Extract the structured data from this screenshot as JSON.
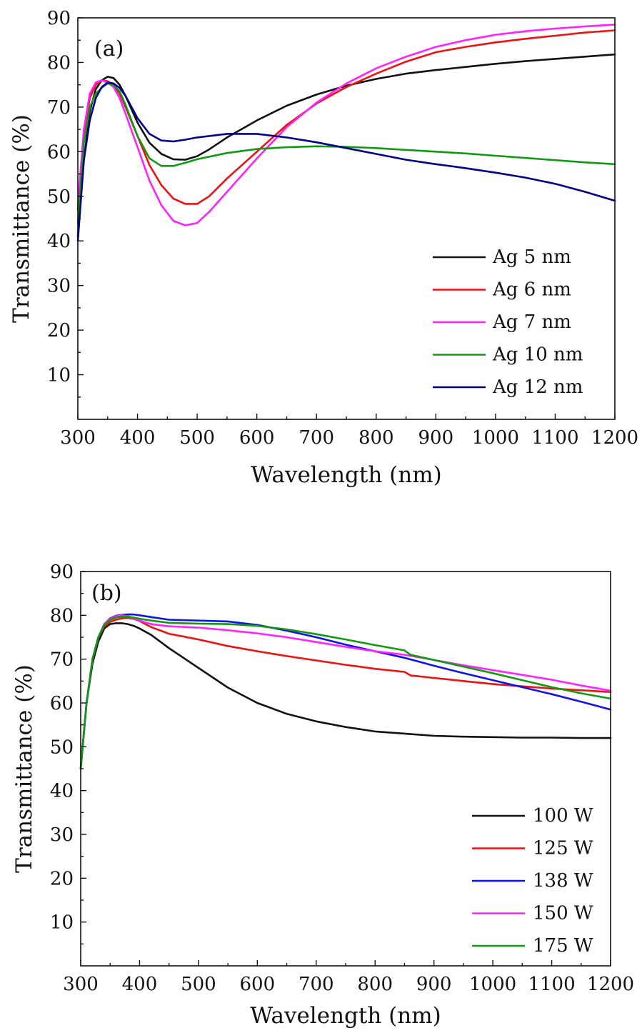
{
  "chart_data": [
    {
      "type": "line",
      "panel_label": "(a)",
      "xlabel": "Wavelength (nm)",
      "ylabel": "Transmittance (%)",
      "xlim": [
        300,
        1200
      ],
      "ylim": [
        0,
        90
      ],
      "xticks": [
        300,
        400,
        500,
        600,
        700,
        800,
        900,
        1000,
        1100,
        1200
      ],
      "yticks": [
        10,
        20,
        30,
        40,
        50,
        60,
        70,
        80,
        90
      ],
      "grid": false,
      "legend_position": "bottom-right",
      "series": [
        {
          "name": "Ag 5 nm",
          "color": "#111111",
          "x": [
            300,
            310,
            320,
            330,
            340,
            350,
            360,
            370,
            380,
            400,
            420,
            440,
            460,
            480,
            500,
            520,
            550,
            600,
            650,
            700,
            750,
            800,
            850,
            900,
            950,
            1000,
            1050,
            1100,
            1150,
            1200
          ],
          "y": [
            41,
            58,
            69,
            74,
            76,
            76.8,
            76.5,
            75,
            72.5,
            66.5,
            62,
            59.5,
            58.3,
            58.2,
            59,
            60.5,
            63.2,
            67,
            70.3,
            72.8,
            74.8,
            76.3,
            77.5,
            78.3,
            79,
            79.7,
            80.3,
            80.8,
            81.3,
            81.8
          ]
        },
        {
          "name": "Ag 6 nm",
          "color": "#ee1111",
          "x": [
            300,
            310,
            320,
            330,
            340,
            350,
            360,
            370,
            380,
            400,
            420,
            440,
            460,
            480,
            500,
            520,
            550,
            600,
            650,
            700,
            750,
            800,
            850,
            900,
            950,
            1000,
            1050,
            1100,
            1150,
            1200
          ],
          "y": [
            47,
            64,
            72,
            75,
            76,
            75.8,
            75,
            73,
            70,
            63.5,
            57,
            52.5,
            49.5,
            48.3,
            48.3,
            50,
            54,
            60,
            66,
            70.8,
            74.5,
            77.5,
            80.2,
            82.3,
            83.5,
            84.5,
            85.3,
            86,
            86.7,
            87.2
          ]
        },
        {
          "name": "Ag 7 nm",
          "color": "#ff22ff",
          "x": [
            300,
            310,
            320,
            330,
            340,
            350,
            360,
            370,
            380,
            400,
            420,
            440,
            460,
            480,
            500,
            520,
            550,
            600,
            650,
            700,
            750,
            800,
            850,
            900,
            950,
            1000,
            1050,
            1100,
            1150,
            1200
          ],
          "y": [
            48,
            65,
            73,
            75.5,
            76,
            75.5,
            74.5,
            72,
            68.5,
            61,
            53.5,
            48,
            44.5,
            43.5,
            44,
            46.5,
            51,
            58.5,
            65.5,
            71,
            75.3,
            78.7,
            81.3,
            83.5,
            85,
            86.2,
            87,
            87.6,
            88.1,
            88.5
          ]
        },
        {
          "name": "Ag 10 nm",
          "color": "#119911",
          "x": [
            300,
            310,
            320,
            330,
            340,
            350,
            360,
            370,
            380,
            400,
            420,
            440,
            460,
            480,
            500,
            550,
            600,
            650,
            700,
            750,
            800,
            850,
            900,
            950,
            1000,
            1050,
            1100,
            1150,
            1200
          ],
          "y": [
            44,
            62,
            70,
            73,
            74.3,
            75.3,
            75,
            73.5,
            70.5,
            63.5,
            58.5,
            56.8,
            56.8,
            57.5,
            58.3,
            59.7,
            60.6,
            61,
            61.2,
            61.1,
            60.8,
            60.4,
            60,
            59.6,
            59.1,
            58.6,
            58.1,
            57.6,
            57.2
          ]
        },
        {
          "name": "Ag 12 nm",
          "color": "#000088",
          "x": [
            300,
            310,
            320,
            330,
            340,
            350,
            360,
            370,
            380,
            400,
            420,
            440,
            460,
            480,
            500,
            550,
            600,
            650,
            700,
            750,
            800,
            850,
            900,
            950,
            1000,
            1050,
            1100,
            1150,
            1200
          ],
          "y": [
            40,
            58,
            67,
            72,
            74.5,
            75.5,
            75.3,
            74.3,
            72.5,
            67.5,
            64,
            62.5,
            62.3,
            62.7,
            63.2,
            64,
            64,
            63.2,
            62.1,
            60.8,
            59.5,
            58.2,
            57.2,
            56.3,
            55.3,
            54.2,
            52.8,
            51,
            49
          ]
        }
      ]
    },
    {
      "type": "line",
      "panel_label": "(b)",
      "xlabel": "Wavelength (nm)",
      "ylabel": "Transmittance (%)",
      "xlim": [
        300,
        1200
      ],
      "ylim": [
        0,
        90
      ],
      "xticks": [
        300,
        400,
        500,
        600,
        700,
        800,
        900,
        1000,
        1100,
        1200
      ],
      "yticks": [
        10,
        20,
        30,
        40,
        50,
        60,
        70,
        80,
        90
      ],
      "grid": false,
      "legend_position": "bottom-right",
      "series": [
        {
          "name": "100 W",
          "color": "#111111",
          "x": [
            300,
            310,
            320,
            330,
            340,
            350,
            360,
            370,
            380,
            390,
            400,
            420,
            450,
            500,
            550,
            600,
            650,
            700,
            750,
            800,
            850,
            900,
            950,
            1000,
            1050,
            1100,
            1150,
            1200
          ],
          "y": [
            45,
            60,
            69,
            74,
            77,
            78,
            78.2,
            78.2,
            78,
            77.6,
            77,
            75.5,
            72.5,
            68,
            63.5,
            60,
            57.5,
            55.8,
            54.5,
            53.5,
            53,
            52.5,
            52.3,
            52.2,
            52.1,
            52.1,
            52,
            52
          ]
        },
        {
          "name": "125 W",
          "color": "#ee1111",
          "x": [
            300,
            310,
            320,
            330,
            340,
            350,
            360,
            370,
            380,
            390,
            400,
            420,
            450,
            500,
            550,
            600,
            650,
            700,
            750,
            800,
            850,
            860,
            900,
            950,
            1000,
            1050,
            1100,
            1150,
            1200
          ],
          "y": [
            45,
            60,
            70,
            75,
            77.5,
            78.5,
            79,
            79.3,
            79.4,
            79.2,
            78.7,
            77.3,
            75.8,
            74.5,
            73,
            71.8,
            70.7,
            69.7,
            68.7,
            67.8,
            67.1,
            66.3,
            65.7,
            65,
            64.3,
            63.8,
            63.3,
            62.9,
            62.5
          ]
        },
        {
          "name": "138 W",
          "color": "#1111ee",
          "x": [
            300,
            310,
            320,
            330,
            340,
            350,
            360,
            370,
            380,
            390,
            400,
            420,
            450,
            500,
            550,
            600,
            650,
            700,
            750,
            800,
            850,
            900,
            950,
            1000,
            1050,
            1100,
            1150,
            1200
          ],
          "y": [
            45,
            60,
            70,
            75,
            78,
            79.3,
            79.9,
            80.1,
            80.2,
            80.2,
            80,
            79.6,
            79,
            78.8,
            78.6,
            77.8,
            76.5,
            75,
            73.3,
            71.8,
            70.3,
            68.5,
            66.8,
            65.2,
            63.6,
            62,
            60.3,
            58.5
          ]
        },
        {
          "name": "150 W",
          "color": "#ff22ff",
          "x": [
            300,
            310,
            320,
            330,
            340,
            350,
            360,
            370,
            380,
            390,
            400,
            420,
            450,
            500,
            550,
            600,
            650,
            700,
            750,
            800,
            850,
            900,
            950,
            1000,
            1050,
            1100,
            1150,
            1200
          ],
          "y": [
            45,
            60,
            70,
            75,
            78,
            79.2,
            79.8,
            80,
            79.8,
            79.3,
            78.8,
            78,
            77.5,
            77.2,
            76.6,
            75.9,
            75,
            73.9,
            72.8,
            71.8,
            71,
            69.8,
            68.6,
            67.5,
            66.4,
            65.3,
            64,
            62.8
          ]
        },
        {
          "name": "175 W",
          "color": "#119911",
          "x": [
            300,
            310,
            320,
            330,
            340,
            350,
            360,
            370,
            380,
            390,
            400,
            420,
            450,
            500,
            550,
            600,
            650,
            700,
            750,
            800,
            850,
            860,
            900,
            950,
            1000,
            1050,
            1100,
            1150,
            1200
          ],
          "y": [
            45,
            60,
            70,
            75,
            77.8,
            79,
            79.5,
            79.7,
            79.7,
            79.5,
            79.2,
            78.8,
            78.3,
            78.1,
            78,
            77.6,
            76.8,
            75.7,
            74.5,
            73.2,
            72,
            71,
            69.8,
            68.3,
            66.8,
            65.2,
            63.6,
            62.2,
            61
          ]
        }
      ]
    }
  ]
}
